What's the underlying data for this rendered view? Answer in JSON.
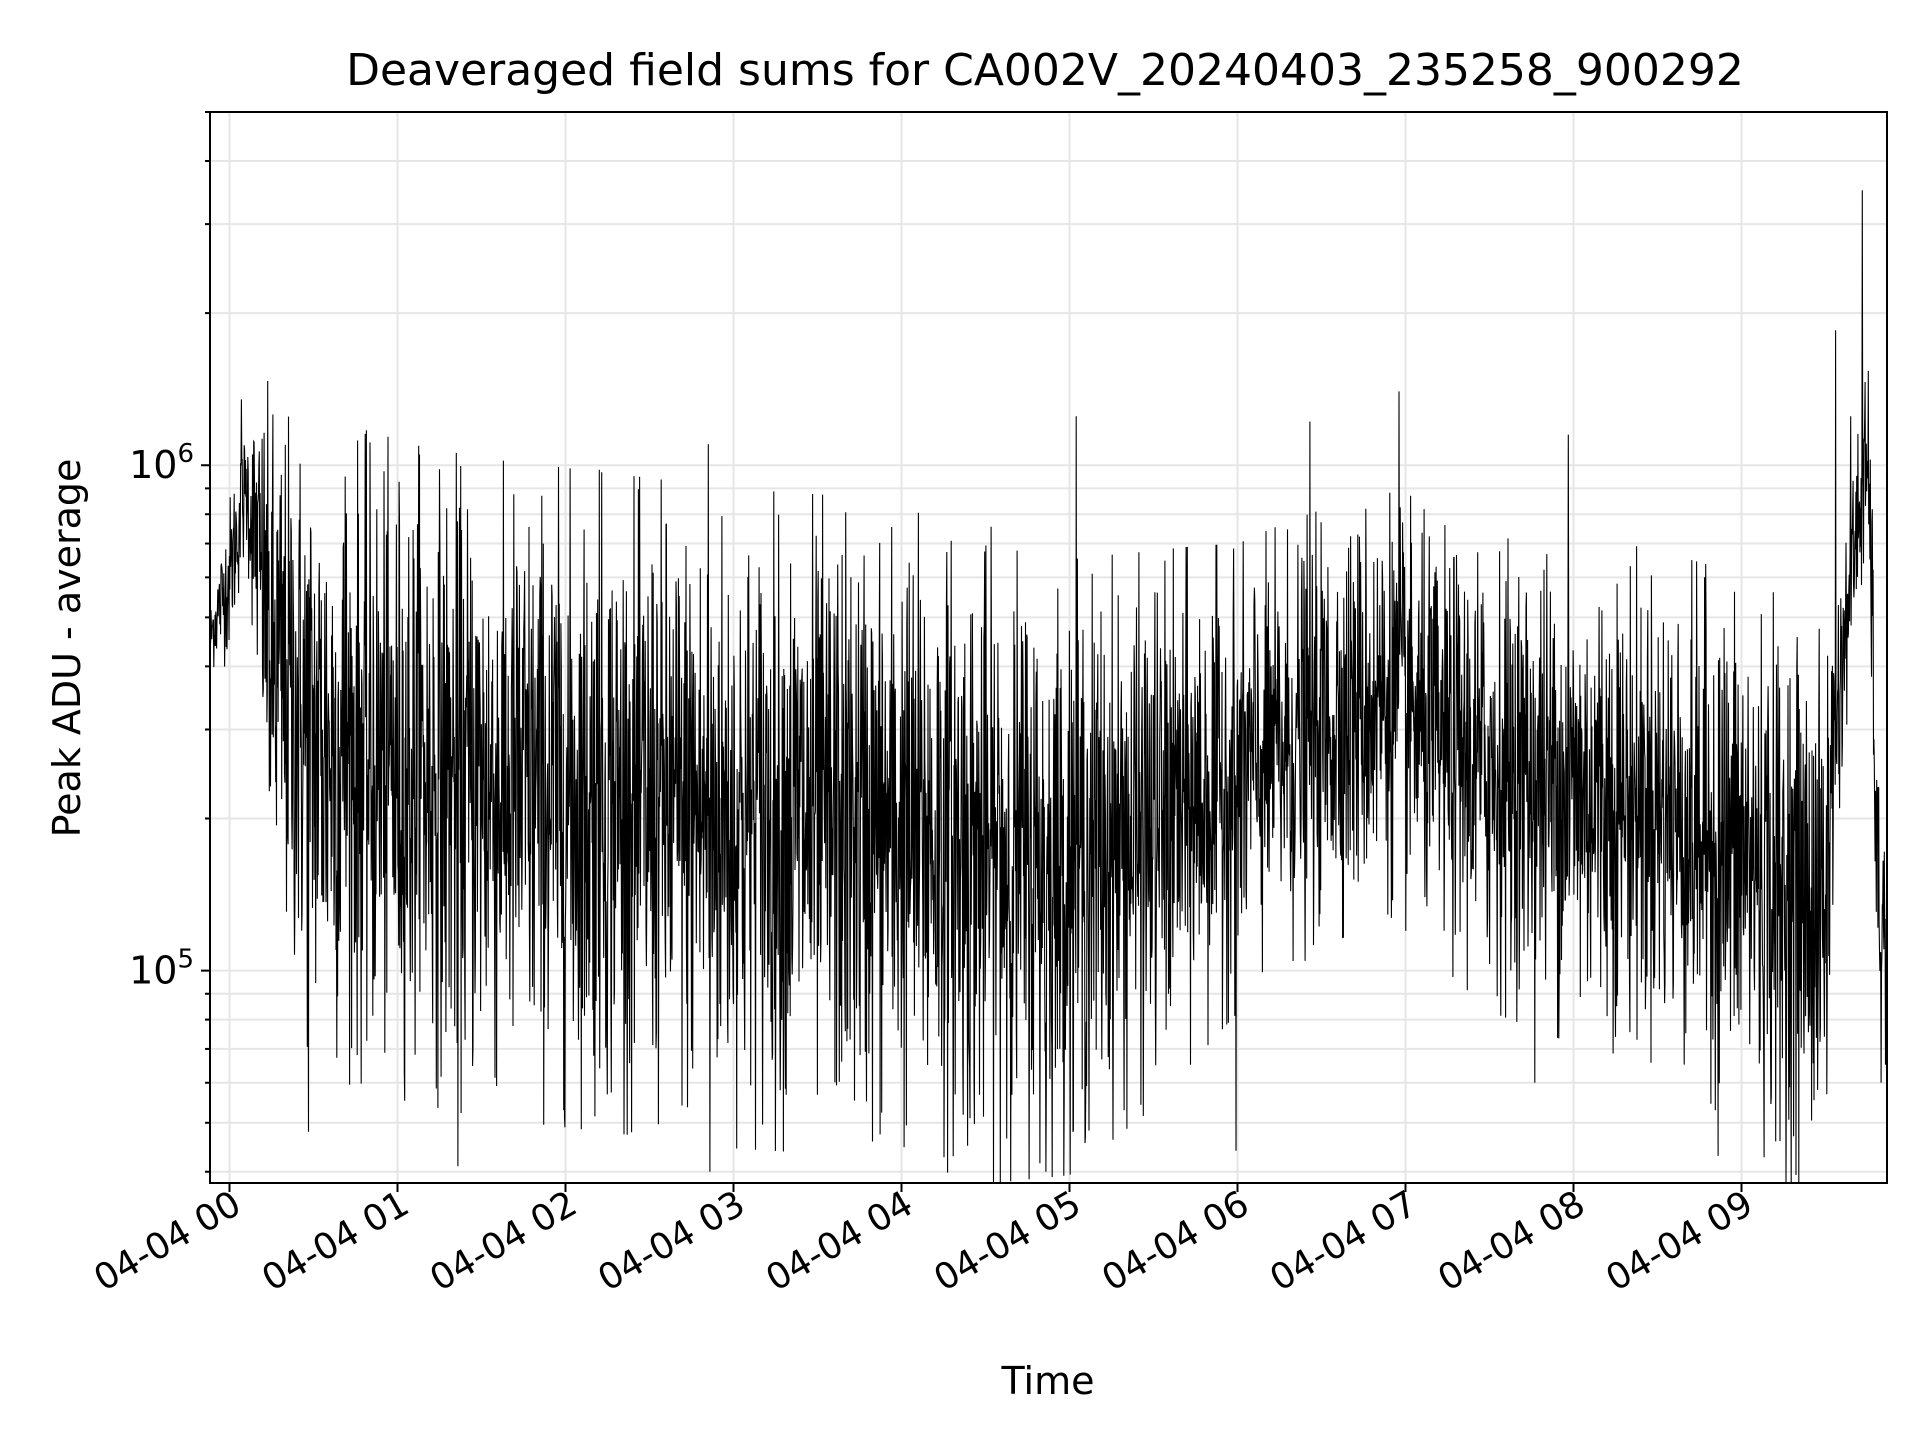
{
  "chart_data": {
    "type": "line",
    "title": "Deaveraged field sums for CA002V_20240403_235258_900292",
    "xlabel": "Time",
    "ylabel": "Peak ADU - average",
    "x_tick_labels": [
      "04-04 00",
      "04-04 01",
      "04-04 02",
      "04-04 03",
      "04-04 04",
      "04-04 05",
      "04-04 06",
      "04-04 07",
      "04-04 08",
      "04-04 09"
    ],
    "x_range": [
      "04-03 23:52:58",
      "04-04 09:52:00"
    ],
    "y_scale": "log",
    "y_tick_labels": [
      {
        "base": "10",
        "exp": "5",
        "value": 100000
      },
      {
        "base": "10",
        "exp": "6",
        "value": 1000000
      }
    ],
    "ylim": [
      38000,
      5000000
    ],
    "grid": true,
    "line_color": "#000000",
    "series_profile": {
      "x_unit": "hours after 04-04 00:00",
      "x": [
        -0.12,
        0.0,
        0.1,
        0.25,
        0.5,
        1.0,
        1.5,
        2.0,
        3.0,
        4.0,
        4.5,
        5.0,
        5.5,
        6.0,
        6.5,
        6.9,
        7.2,
        7.5,
        8.0,
        8.5,
        9.0,
        9.3,
        9.5,
        9.6,
        9.7,
        9.75,
        9.8,
        9.87
      ],
      "median": [
        450000,
        600000,
        900000,
        400000,
        280000,
        250000,
        230000,
        220000,
        200000,
        190000,
        170000,
        160000,
        190000,
        240000,
        300000,
        350000,
        280000,
        250000,
        230000,
        210000,
        170000,
        140000,
        130000,
        400000,
        800000,
        1000000,
        150000,
        110000
      ],
      "spread_dex": [
        0.05,
        0.12,
        0.1,
        0.38,
        0.45,
        0.45,
        0.45,
        0.45,
        0.45,
        0.45,
        0.45,
        0.42,
        0.38,
        0.32,
        0.3,
        0.3,
        0.3,
        0.33,
        0.35,
        0.35,
        0.38,
        0.4,
        0.38,
        0.15,
        0.15,
        0.15,
        0.2,
        0.18
      ]
    },
    "notable_points": [
      {
        "x": 9.72,
        "y": 3500000
      },
      {
        "x": 9.56,
        "y": 1850000
      },
      {
        "x": 9.65,
        "y": 1250000
      },
      {
        "x": 6.96,
        "y": 1400000
      },
      {
        "x": 0.07,
        "y": 1350000
      },
      {
        "x": 5.04,
        "y": 1250000
      },
      {
        "x": 6.43,
        "y": 1220000
      },
      {
        "x": 7.97,
        "y": 1150000
      },
      {
        "x": 2.85,
        "y": 1100000
      },
      {
        "x": 1.13,
        "y": 1050000
      },
      {
        "x": 0.69,
        "y": 950000
      },
      {
        "x": 2.2,
        "y": 980000
      },
      {
        "x": 2.86,
        "y": 40000
      },
      {
        "x": 4.86,
        "y": 40000
      },
      {
        "x": 1.36,
        "y": 41000
      },
      {
        "x": 5.99,
        "y": 44000
      },
      {
        "x": 8.86,
        "y": 43000
      },
      {
        "x": 9.23,
        "y": 46000
      },
      {
        "x": 0.47,
        "y": 48000
      },
      {
        "x": 7.77,
        "y": 60000
      },
      {
        "x": 9.83,
        "y": 60000
      },
      {
        "x": 9.87,
        "y": 78000
      }
    ]
  }
}
